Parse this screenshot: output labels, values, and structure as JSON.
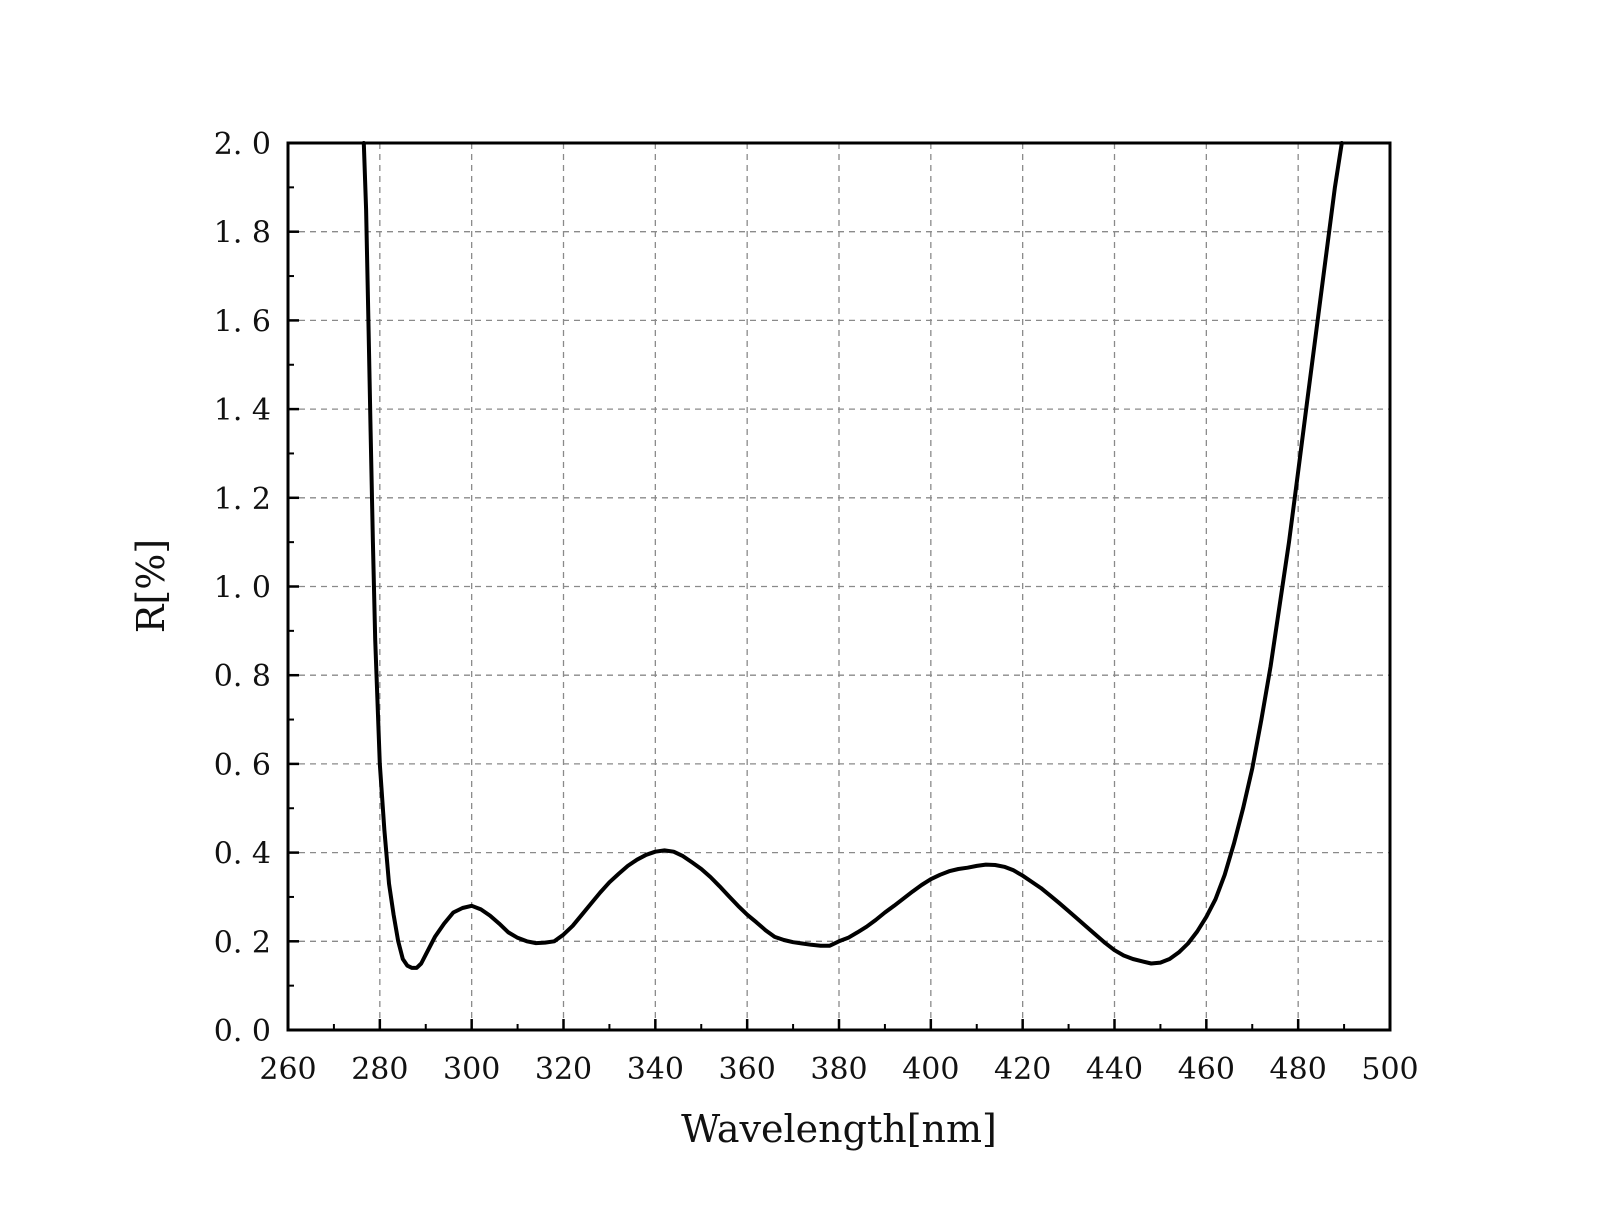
{
  "chart_data": {
    "type": "line",
    "title": "",
    "xlabel": "Wavelength[nm]",
    "ylabel": "R[%]",
    "xlim": [
      260,
      500
    ],
    "ylim": [
      0.0,
      2.0
    ],
    "x_ticks": [
      260,
      280,
      300,
      320,
      340,
      360,
      380,
      400,
      420,
      440,
      460,
      480,
      500
    ],
    "x_tick_labels": [
      "260",
      "280",
      "300",
      "320",
      "340",
      "360",
      "380",
      "400",
      "420",
      "440",
      "460",
      "480",
      "500"
    ],
    "y_ticks": [
      0.0,
      0.2,
      0.4,
      0.6,
      0.8,
      1.0,
      1.2,
      1.4,
      1.6,
      1.8,
      2.0
    ],
    "y_tick_labels": [
      "0. 0",
      "0. 2",
      "0. 4",
      "0. 6",
      "0. 8",
      "1. 0",
      "1. 2",
      "1. 4",
      "1. 6",
      "1. 8",
      "2. 0"
    ],
    "grid": true,
    "grid_style": "dashed",
    "line_color": "#000000",
    "series": [
      {
        "x": [
          276.5,
          277,
          277.5,
          278,
          278.5,
          279,
          280,
          281,
          282,
          283,
          284,
          285,
          286,
          287,
          288,
          289,
          290,
          292,
          294,
          296,
          298,
          300,
          302,
          304,
          306,
          308,
          310,
          312,
          314,
          316,
          318,
          320,
          322,
          324,
          326,
          328,
          330,
          332,
          334,
          336,
          338,
          340,
          342,
          344,
          346,
          348,
          350,
          352,
          354,
          356,
          358,
          360,
          362,
          364,
          366,
          368,
          370,
          372,
          374,
          376,
          378,
          380,
          382,
          384,
          386,
          388,
          390,
          392,
          394,
          396,
          398,
          400,
          402,
          404,
          406,
          408,
          410,
          412,
          414,
          416,
          418,
          420,
          422,
          424,
          426,
          428,
          430,
          432,
          434,
          436,
          438,
          440,
          442,
          444,
          446,
          448,
          450,
          452,
          454,
          456,
          458,
          460,
          462,
          464,
          466,
          468,
          470,
          472,
          474,
          476,
          478,
          480,
          482,
          484,
          486,
          488,
          489.5
        ],
        "y": [
          2.0,
          1.85,
          1.6,
          1.35,
          1.1,
          0.88,
          0.6,
          0.45,
          0.33,
          0.26,
          0.2,
          0.16,
          0.145,
          0.14,
          0.14,
          0.15,
          0.17,
          0.21,
          0.24,
          0.265,
          0.275,
          0.28,
          0.272,
          0.258,
          0.24,
          0.22,
          0.208,
          0.2,
          0.196,
          0.197,
          0.2,
          0.215,
          0.235,
          0.26,
          0.285,
          0.31,
          0.333,
          0.352,
          0.37,
          0.384,
          0.395,
          0.402,
          0.405,
          0.402,
          0.392,
          0.378,
          0.363,
          0.345,
          0.324,
          0.302,
          0.28,
          0.26,
          0.243,
          0.225,
          0.21,
          0.203,
          0.198,
          0.195,
          0.192,
          0.19,
          0.19,
          0.2,
          0.208,
          0.22,
          0.233,
          0.248,
          0.265,
          0.28,
          0.296,
          0.312,
          0.327,
          0.34,
          0.35,
          0.358,
          0.363,
          0.366,
          0.37,
          0.373,
          0.372,
          0.368,
          0.36,
          0.348,
          0.334,
          0.32,
          0.303,
          0.286,
          0.268,
          0.25,
          0.232,
          0.214,
          0.196,
          0.18,
          0.168,
          0.16,
          0.155,
          0.15,
          0.152,
          0.16,
          0.175,
          0.195,
          0.222,
          0.255,
          0.295,
          0.35,
          0.42,
          0.5,
          0.59,
          0.7,
          0.82,
          0.96,
          1.1,
          1.26,
          1.42,
          1.58,
          1.74,
          1.9,
          2.0
        ]
      }
    ]
  }
}
